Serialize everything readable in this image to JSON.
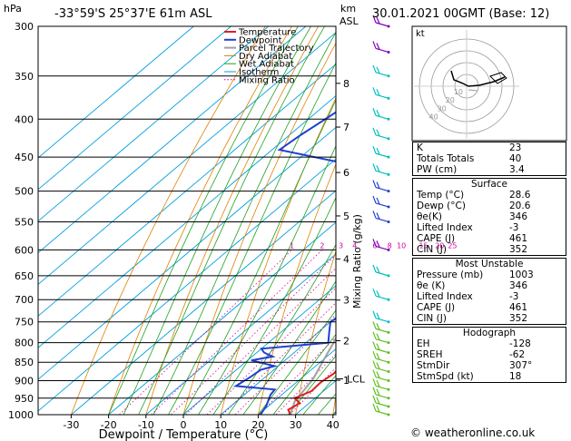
{
  "header": {
    "location": "-33°59'S  25°37'E  61m  ASL",
    "datetime": "30.01.2021  00GMT  (Base: 12)",
    "hpa_unit": "hPa",
    "km_unit": "km",
    "asl_unit": "ASL",
    "footer": "© weatheronline.co.uk"
  },
  "chart_data": {
    "type": "line",
    "title": "-33°59'S  25°37'E  61m  ASL",
    "xlabel": "Dewpoint / Temperature (°C)",
    "ylabel": "hPa",
    "y2label": "Mixing Ratio (g/kg)",
    "x_ticks": [
      -30,
      -20,
      -10,
      0,
      10,
      20,
      30,
      40
    ],
    "xlim": [
      -35,
      40
    ],
    "y_scale": "log",
    "ylim": [
      1000,
      300
    ],
    "pressure_ticks": [
      300,
      350,
      400,
      450,
      500,
      550,
      600,
      650,
      700,
      750,
      800,
      850,
      900,
      950,
      1000
    ],
    "km_ticks": [
      {
        "km": "8",
        "p": 358
      },
      {
        "km": "7",
        "p": 410
      },
      {
        "km": "6",
        "p": 472
      },
      {
        "km": "5",
        "p": 540
      },
      {
        "km": "4",
        "p": 617
      },
      {
        "km": "3",
        "p": 701
      },
      {
        "km": "2",
        "p": 795
      },
      {
        "km": "1",
        "p": 899
      }
    ],
    "mixing_ratio_labels": [
      "1",
      "2",
      "3",
      "4",
      "6",
      "8",
      "10",
      "15",
      "20",
      "25"
    ],
    "lcl_label": "LCL",
    "lcl_pressure": 895,
    "legend": [
      "Temperature",
      "Dewpoint",
      "Parcel Trajectory",
      "Dry Adiabat",
      "Wet Adiabat",
      "Isotherm",
      "Mixing Ratio"
    ],
    "legend_position": "top-left",
    "colors": {
      "temperature": "#e02020",
      "dewpoint": "#2040d0",
      "parcel": "#a0a0a0",
      "dry_adiabat": "#e08000",
      "wet_adiabat": "#20a020",
      "isotherm": "#00a0e0",
      "mixing_ratio": "#d000a0"
    },
    "series": [
      {
        "name": "Temperature",
        "points": [
          [
            28.6,
            1000
          ],
          [
            26.5,
            985
          ],
          [
            27.5,
            965
          ],
          [
            24.5,
            950
          ],
          [
            26.8,
            930
          ],
          [
            26.5,
            905
          ],
          [
            27.2,
            880
          ],
          [
            26.5,
            850
          ],
          [
            24.5,
            825
          ],
          [
            22.5,
            800
          ],
          [
            22,
            775
          ],
          [
            20.5,
            750
          ],
          [
            18,
            725
          ],
          [
            15,
            700
          ],
          [
            11,
            660
          ],
          [
            7,
            610
          ],
          [
            3,
            570
          ],
          [
            -1,
            535
          ],
          [
            -5,
            512
          ],
          [
            -3.5,
            495
          ],
          [
            -6.5,
            475
          ],
          [
            -10,
            450
          ],
          [
            -16,
            410
          ],
          [
            -21,
            380
          ],
          [
            -25,
            360
          ],
          [
            -30,
            330
          ],
          [
            -34,
            300
          ]
        ]
      },
      {
        "name": "Dewpoint",
        "points": [
          [
            20.6,
            1000
          ],
          [
            19.5,
            975
          ],
          [
            17,
            940
          ],
          [
            16.5,
            925
          ],
          [
            5,
            915
          ],
          [
            6,
            890
          ],
          [
            6.5,
            870
          ],
          [
            9,
            860
          ],
          [
            1,
            845
          ],
          [
            5.5,
            835
          ],
          [
            2,
            825
          ],
          [
            0,
            815
          ],
          [
            16,
            800
          ],
          [
            13,
            775
          ],
          [
            10,
            750
          ],
          [
            11.5,
            725
          ],
          [
            8,
            700
          ],
          [
            6.5,
            650
          ],
          [
            3,
            610
          ],
          [
            2,
            575
          ],
          [
            -5.5,
            565
          ],
          [
            -3,
            545
          ],
          [
            -7,
            530
          ],
          [
            -6,
            520
          ],
          [
            -9.5,
            505
          ],
          [
            -24,
            497
          ],
          [
            -27,
            490
          ],
          [
            -15,
            478
          ],
          [
            -58,
            440
          ],
          [
            -57,
            420
          ],
          [
            -53,
            370
          ],
          [
            -43,
            330
          ],
          [
            -33,
            300
          ]
        ]
      },
      {
        "name": "Parcel Trajectory",
        "points": [
          [
            28.6,
            1000
          ],
          [
            25.6,
            960
          ],
          [
            23.4,
            895
          ],
          [
            20.6,
            850
          ],
          [
            17.4,
            800
          ],
          [
            13.8,
            750
          ],
          [
            10,
            700
          ],
          [
            5.5,
            650
          ],
          [
            0.5,
            600
          ],
          [
            -4.7,
            550
          ],
          [
            -10,
            500
          ],
          [
            -16,
            450
          ],
          [
            -22.5,
            400
          ],
          [
            -30,
            350
          ],
          [
            -38,
            300
          ]
        ]
      }
    ]
  },
  "hodograph": {
    "label": "kt",
    "ring_labels": [
      "10",
      "20",
      "30",
      "40"
    ]
  },
  "indices": {
    "k": {
      "label": "K",
      "value": "23"
    },
    "tt": {
      "label": "Totals Totals",
      "value": "40"
    },
    "pw": {
      "label": "PW (cm)",
      "value": "3.4"
    }
  },
  "surface": {
    "title": "Surface",
    "rows": [
      {
        "label": "Temp (°C)",
        "value": "28.6"
      },
      {
        "label": "Dewp (°C)",
        "value": "20.6"
      },
      {
        "label": "θe(K)",
        "value": "346"
      },
      {
        "label": "Lifted Index",
        "value": "-3"
      },
      {
        "label": "CAPE (J)",
        "value": "461"
      },
      {
        "label": "CIN (J)",
        "value": "352"
      }
    ]
  },
  "most_unstable": {
    "title": "Most Unstable",
    "rows": [
      {
        "label": "Pressure (mb)",
        "value": "1003"
      },
      {
        "label": "θe (K)",
        "value": "346"
      },
      {
        "label": "Lifted Index",
        "value": "-3"
      },
      {
        "label": "CAPE (J)",
        "value": "461"
      },
      {
        "label": "CIN (J)",
        "value": "352"
      }
    ]
  },
  "hodograph_indices": {
    "title": "Hodograph",
    "rows": [
      {
        "label": "EH",
        "value": "-128"
      },
      {
        "label": "SREH",
        "value": "-62"
      },
      {
        "label": "StmDir",
        "value": "307°"
      },
      {
        "label": "StmSpd (kt)",
        "value": "18"
      }
    ]
  }
}
